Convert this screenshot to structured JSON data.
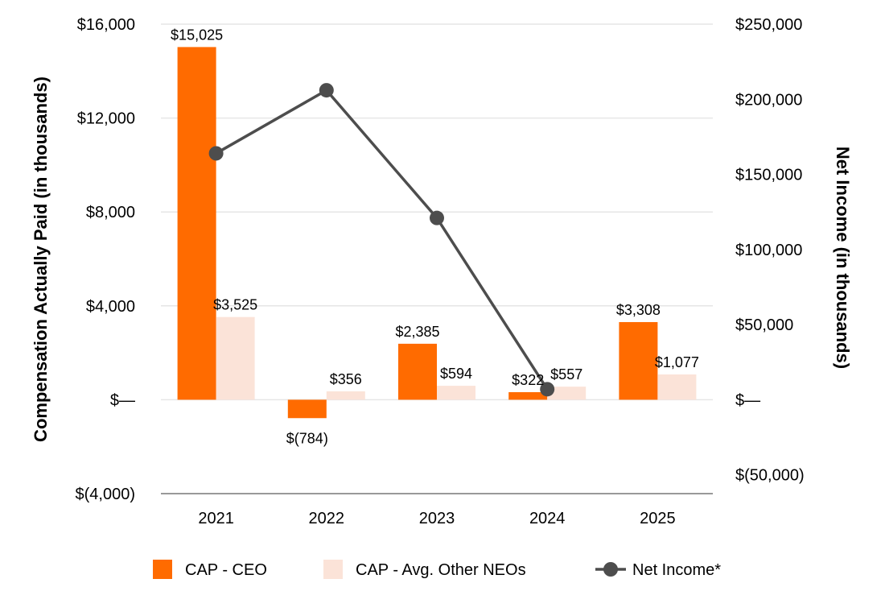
{
  "chart_data": {
    "type": "bar+line",
    "categories": [
      "2021",
      "2022",
      "2023",
      "2024",
      "2025"
    ],
    "series": [
      {
        "name": "CAP - CEO",
        "kind": "bar",
        "axis": "left",
        "color": "#ff6b00",
        "values": [
          15025,
          -784,
          2385,
          322,
          3308
        ],
        "labels": [
          "$15,025",
          "$(784)",
          "$2,385",
          "$322",
          "$3,308"
        ]
      },
      {
        "name": "CAP - Avg. Other NEOs",
        "kind": "bar",
        "axis": "left",
        "color": "#fbe3d8",
        "values": [
          3525,
          356,
          594,
          557,
          1077
        ],
        "labels": [
          "$3,525",
          "$356",
          "$594",
          "$557",
          "$1,077"
        ]
      },
      {
        "name": "Net Income*",
        "kind": "line",
        "axis": "right",
        "color": "#4d4d4d",
        "values": [
          164000,
          206000,
          121000,
          7000,
          null
        ]
      }
    ],
    "left_axis": {
      "title": "Compensation Actually Paid (in thousands)",
      "ylim": [
        -4000,
        16000
      ],
      "ticks": [
        16000,
        12000,
        8000,
        4000,
        0,
        -4000
      ],
      "tick_labels": [
        "$16,000",
        "$12,000",
        "$8,000",
        "$4,000",
        "$—",
        "$(4,000)"
      ]
    },
    "right_axis": {
      "title": "Net Income (in thousands)",
      "ylim": [
        -62500,
        250000
      ],
      "ticks": [
        250000,
        200000,
        150000,
        100000,
        50000,
        0,
        -50000
      ],
      "tick_labels": [
        "$250,000",
        "$200,000",
        "$150,000",
        "$100,000",
        "$50,000",
        "$—",
        "$(50,000)"
      ]
    },
    "grid": true,
    "legend_position": "bottom-center"
  }
}
